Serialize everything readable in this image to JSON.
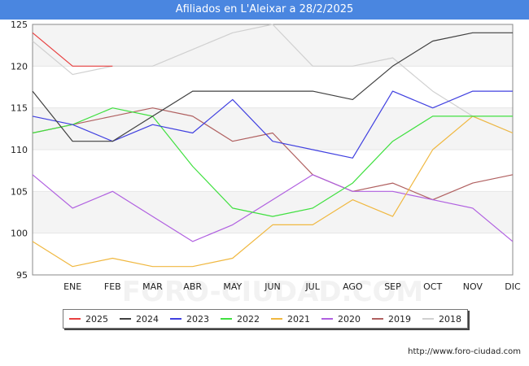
{
  "chart_data": {
    "type": "line",
    "title": "Afiliados en L'Aleixar a 28/2/2025",
    "categories": [
      "",
      "ENE",
      "FEB",
      "MAR",
      "ABR",
      "MAY",
      "JUN",
      "JUL",
      "AGO",
      "SEP",
      "OCT",
      "NOV",
      "DIC"
    ],
    "ylim": [
      95,
      125
    ],
    "yticks": [
      95,
      100,
      105,
      110,
      115,
      120,
      125
    ],
    "xlabel": "",
    "ylabel": "",
    "legend_position": "bottom",
    "series": [
      {
        "name": "2025",
        "color": "#e84040",
        "values": [
          124,
          120,
          120,
          null,
          null,
          null,
          null,
          null,
          null,
          null,
          null,
          null,
          null
        ]
      },
      {
        "name": "2024",
        "color": "#404040",
        "values": [
          117,
          111,
          111,
          114,
          117,
          117,
          117,
          117,
          116,
          120,
          123,
          124,
          124
        ]
      },
      {
        "name": "2023",
        "color": "#4040e0",
        "values": [
          114,
          113,
          111,
          113,
          112,
          116,
          111,
          110,
          109,
          117,
          115,
          117,
          117
        ]
      },
      {
        "name": "2022",
        "color": "#40e040",
        "values": [
          112,
          113,
          115,
          114,
          108,
          103,
          102,
          103,
          106,
          111,
          114,
          114,
          114
        ]
      },
      {
        "name": "2021",
        "color": "#f0b840",
        "values": [
          99,
          96,
          97,
          96,
          96,
          97,
          101,
          101,
          104,
          102,
          110,
          114,
          112
        ]
      },
      {
        "name": "2020",
        "color": "#b060e0",
        "values": [
          107,
          103,
          105,
          102,
          99,
          101,
          104,
          107,
          105,
          105,
          104,
          103,
          99
        ]
      },
      {
        "name": "2019",
        "color": "#b06060",
        "values": [
          112,
          113,
          114,
          115,
          114,
          111,
          112,
          107,
          105,
          106,
          104,
          106,
          107
        ]
      },
      {
        "name": "2018",
        "color": "#d0d0d0",
        "values": [
          123,
          119,
          120,
          120,
          122,
          124,
          125,
          120,
          120,
          121,
          117,
          114,
          112
        ]
      }
    ]
  },
  "watermark": "FORO-CIUDAD.COM",
  "source_url": "http://www.foro-ciudad.com"
}
